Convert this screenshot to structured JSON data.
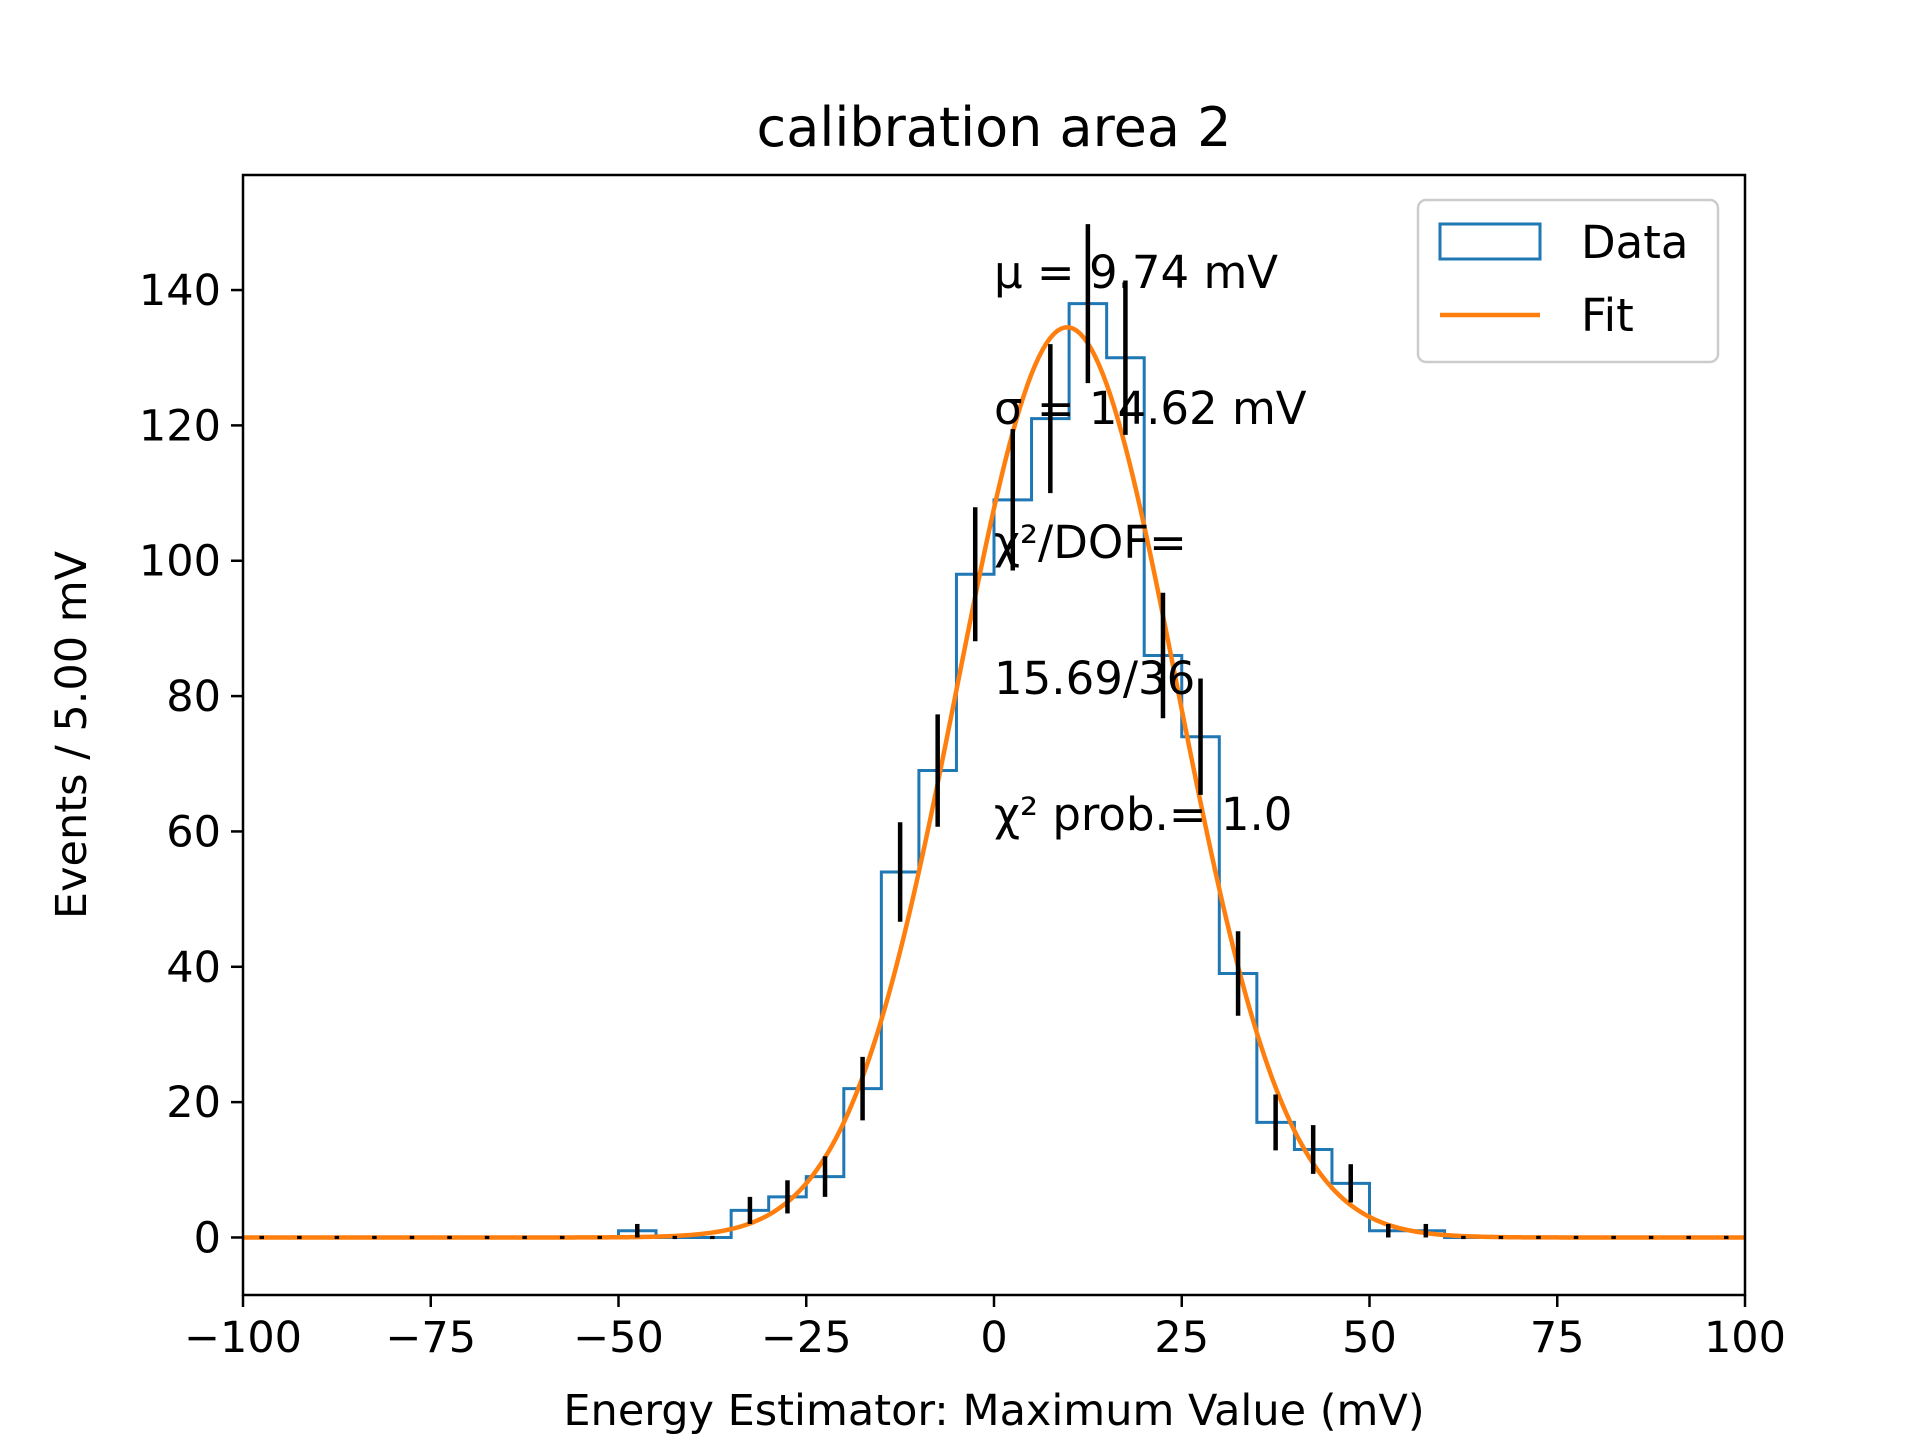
{
  "chart_data": {
    "type": "histogram",
    "title": "calibration area 2",
    "xlabel": "Energy Estimator: Maximum Value (mV)",
    "ylabel": "Events / 5.00 mV",
    "xlim": [
      -100,
      100
    ],
    "ylim": [
      -8.5,
      157
    ],
    "xticks": [
      -100,
      -75,
      -50,
      -25,
      0,
      25,
      50,
      75,
      100
    ],
    "xtick_labels": [
      "−100",
      "−75",
      "−50",
      "−25",
      "0",
      "25",
      "50",
      "75",
      "100"
    ],
    "yticks": [
      0,
      20,
      40,
      60,
      80,
      100,
      120,
      140
    ],
    "ytick_labels": [
      "0",
      "20",
      "40",
      "60",
      "80",
      "100",
      "120",
      "140"
    ],
    "grid": false,
    "legend_position": "top-right",
    "bin_width": 5,
    "bin_edges": [
      -100,
      -95,
      -90,
      -85,
      -80,
      -75,
      -70,
      -65,
      -60,
      -55,
      -50,
      -45,
      -40,
      -35,
      -30,
      -25,
      -20,
      -15,
      -10,
      -5,
      0,
      5,
      10,
      15,
      20,
      25,
      30,
      35,
      40,
      45,
      50,
      55,
      60,
      65,
      70,
      75,
      80,
      85,
      90,
      95,
      100
    ],
    "series": [
      {
        "name": "Data",
        "style": "step",
        "color": "#1f77b4",
        "counts": [
          0,
          0,
          0,
          0,
          0,
          0,
          0,
          0,
          0,
          0,
          1,
          0,
          0,
          4,
          6,
          9,
          22,
          54,
          69,
          98,
          109,
          121,
          138,
          130,
          86,
          74,
          39,
          17,
          13,
          8,
          1,
          1,
          0,
          0,
          0,
          0,
          0,
          0,
          0,
          0
        ],
        "error_color": "#000000"
      },
      {
        "name": "Fit",
        "style": "line",
        "color": "#ff7f0e",
        "model": "gaussian",
        "amplitude": 134.5,
        "mu": 9.74,
        "sigma": 14.62
      }
    ],
    "annotations": [
      {
        "text": "μ = 9.74 mV"
      },
      {
        "text": "σ = 14.62 mV"
      },
      {
        "text": "χ²/DOF="
      },
      {
        "text": "15.69/36"
      },
      {
        "text": "χ² prob.= 1.0"
      }
    ]
  }
}
